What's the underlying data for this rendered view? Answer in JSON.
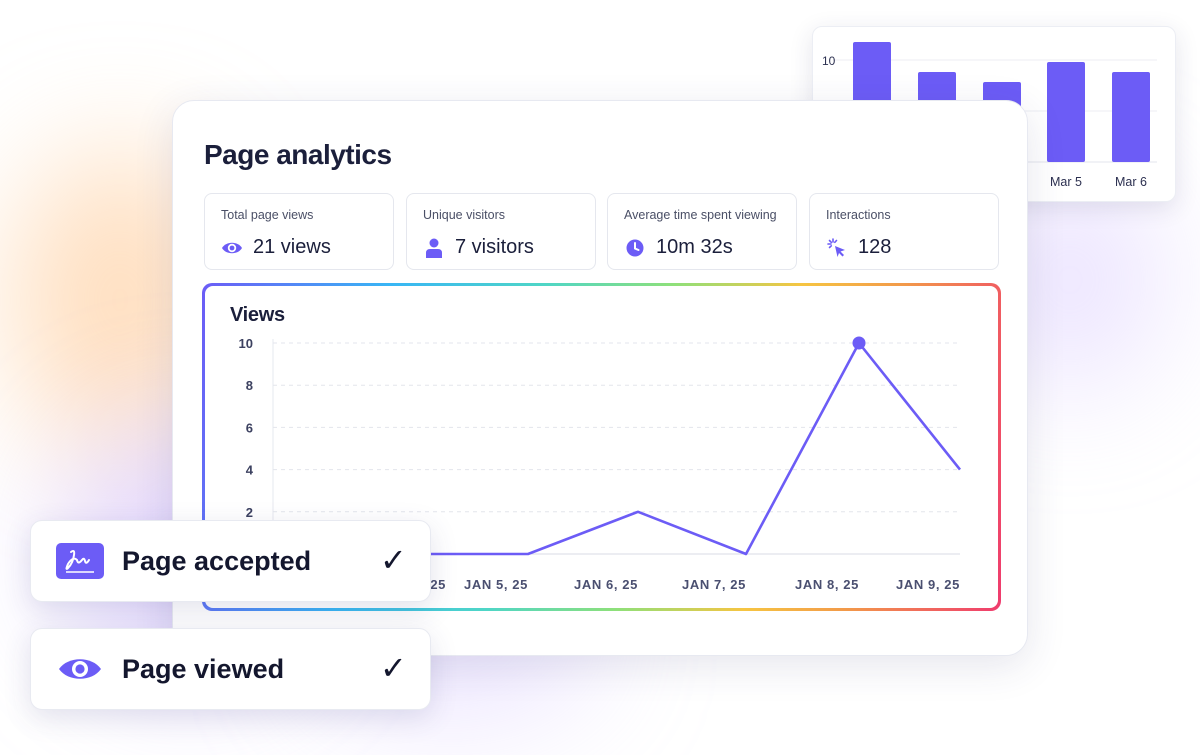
{
  "page_title": "Page analytics",
  "stats": [
    {
      "label": "Total page views",
      "value": "21 views",
      "icon": "eye-icon"
    },
    {
      "label": "Unique visitors",
      "value": "7 visitors",
      "icon": "person-icon"
    },
    {
      "label": "Average time spent viewing",
      "value": "10m 32s",
      "icon": "clock-icon"
    },
    {
      "label": "Interactions",
      "value": "128",
      "icon": "click-icon"
    }
  ],
  "chart": {
    "title": "Views"
  },
  "chart_data": [
    {
      "type": "line",
      "title": "Views",
      "x": [
        "25",
        "JAN 5, 25",
        "JAN 6, 25",
        "JAN 7, 25",
        "JAN 8, 25",
        "JAN 9, 25"
      ],
      "values": [
        0,
        0,
        2,
        0,
        10,
        4
      ],
      "yticks": [
        2,
        4,
        6,
        8,
        10
      ],
      "ylim": [
        0,
        10
      ],
      "grid": true,
      "highlight_index": 4,
      "color": "#6c5cf6"
    },
    {
      "type": "bar",
      "categories": [
        "",
        "",
        "",
        "Mar 5",
        "Mar 6"
      ],
      "values": [
        12,
        9,
        8,
        10,
        9
      ],
      "yticks": [
        10
      ],
      "color": "#6c5cf6"
    }
  ],
  "notifications": [
    {
      "label": "Page accepted",
      "check": "✓",
      "icon": "signature-icon"
    },
    {
      "label": "Page viewed",
      "check": "✓",
      "icon": "eye-icon"
    }
  ],
  "colors": {
    "accent": "#6c5cf6",
    "text": "#1b1f3b"
  }
}
